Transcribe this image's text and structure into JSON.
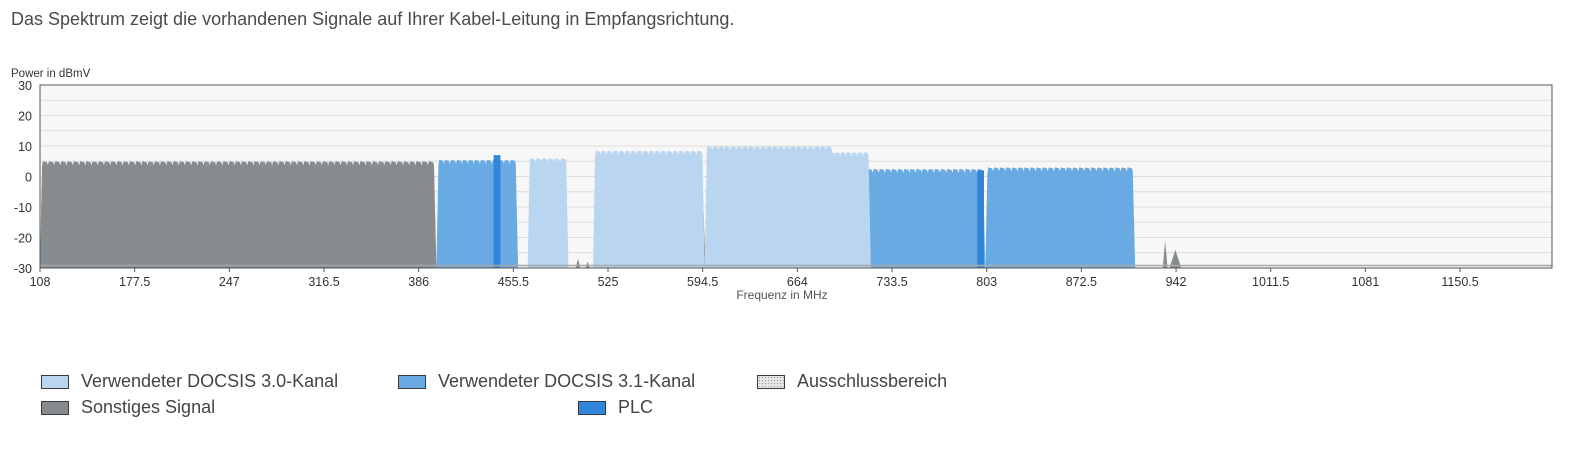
{
  "intro_text": "Das Spektrum zeigt die vorhandenen Signale auf Ihrer Kabel-Leitung in Empfangsrichtung.",
  "colors": {
    "docsis30": "#b9d5f0",
    "docsis31": "#6aaae3",
    "other": "#858b8e",
    "plc": "#2f86dc",
    "plot_bg": "#f7f7f7",
    "grid": "#dddddd"
  },
  "chart_data": {
    "type": "area",
    "ylabel": "Power in dBmV",
    "xlabel": "Frequenz in MHz",
    "ylim": [
      -30,
      30
    ],
    "xlim": [
      108,
      1218
    ],
    "y_ticks": [
      "30",
      "20",
      "10",
      "0",
      "-10",
      "-20",
      "-30"
    ],
    "x_ticks": [
      "108",
      "177.5",
      "247",
      "316.5",
      "386",
      "455.5",
      "525",
      "594.5",
      "664",
      "733.5",
      "803",
      "872.5",
      "942",
      "1011.5",
      "1081",
      "1150.5"
    ],
    "grid": true,
    "series": [
      {
        "name": "Sonstiges Signal",
        "kind": "other",
        "segments": [
          {
            "x": [
              108,
              399
            ],
            "level": 5
          },
          {
            "x": [
              445,
              448
            ],
            "level": -27
          },
          {
            "x": [
              502,
              504
            ],
            "level": -27
          },
          {
            "x": [
              509,
              511
            ],
            "level": -28
          },
          {
            "x": [
              591,
              596
            ],
            "level": 7
          },
          {
            "x": [
              685,
              686
            ],
            "level": -27
          },
          {
            "x": [
              899,
              900
            ],
            "level": -7
          },
          {
            "x": [
              933,
              935
            ],
            "level": -21
          },
          {
            "x": [
              938,
              945
            ],
            "level": -24
          }
        ]
      },
      {
        "name": "Verwendeter DOCSIS 3.1-Kanal",
        "kind": "docsis31",
        "segments": [
          {
            "x": [
              399,
              459
            ],
            "level": 5.5
          },
          {
            "x": [
              691,
              802
            ],
            "level": 2.5
          }
        ]
      },
      {
        "name": "PLC",
        "kind": "plc",
        "segments": [
          {
            "x": [
              441,
              446
            ],
            "level": 7
          },
          {
            "x": [
              796,
              801
            ],
            "level": 2
          }
        ]
      },
      {
        "name": "Verwendeter DOCSIS 3.1-Kanal",
        "kind": "docsis31",
        "segments": [
          {
            "x": [
              802,
              912
            ],
            "level": 3
          }
        ]
      },
      {
        "name": "Verwendeter DOCSIS 3.0-Kanal",
        "kind": "docsis30",
        "segments": [
          {
            "x": [
              466,
              496
            ],
            "level": 6
          },
          {
            "x": [
              514,
              596
            ],
            "level": 8.5
          },
          {
            "x": [
              596,
              691
            ],
            "level": 10
          },
          {
            "x": [
              686,
              718
            ],
            "level": 8
          }
        ]
      }
    ]
  },
  "legend": [
    {
      "label": "Verwendeter DOCSIS 3.0-Kanal",
      "kind": "docsis30"
    },
    {
      "label": "Verwendeter DOCSIS 3.1-Kanal",
      "kind": "docsis31"
    },
    {
      "label": "Ausschlussbereich",
      "kind": "excl"
    },
    {
      "label": "Sonstiges Signal",
      "kind": "other"
    },
    {
      "label": "PLC",
      "kind": "plc"
    }
  ]
}
